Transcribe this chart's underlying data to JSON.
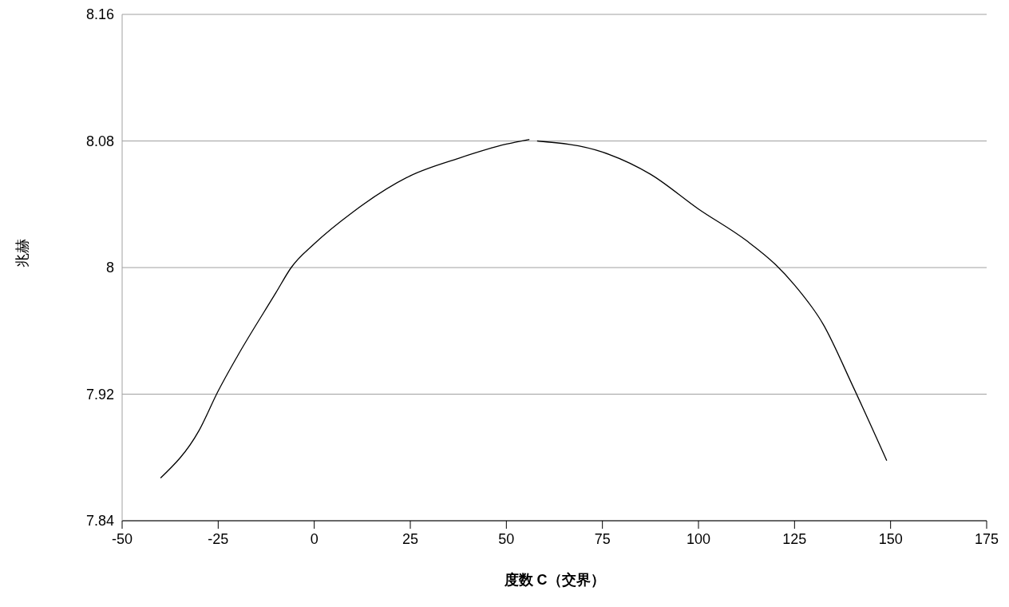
{
  "chart_data": {
    "type": "line",
    "xlabel": "度数 C（交界）",
    "ylabel": "兆赫",
    "x": [
      -40,
      -30,
      -25,
      -20,
      -10,
      -6,
      0,
      10,
      25,
      37.5,
      50,
      56,
      57,
      58,
      75,
      87.5,
      100,
      112.5,
      120,
      125,
      132.5,
      140,
      149
    ],
    "series": [
      {
        "color": "#000000",
        "values": [
          7.867,
          7.897,
          7.922,
          7.944,
          7.984,
          8.0,
          8.015,
          8.035,
          8.058,
          8.069,
          8.078,
          8.081,
          null,
          8.08,
          8.073,
          8.059,
          8.037,
          8.017,
          8.002,
          7.989,
          7.964,
          7.926,
          7.878
        ]
      }
    ],
    "xlim": [
      -50,
      175
    ],
    "xticks": [
      -50,
      -25,
      0,
      25,
      50,
      75,
      100,
      125,
      150,
      175
    ],
    "ylim": [
      7.84,
      8.16
    ],
    "yticks": [
      7.84,
      7.92,
      8,
      8.08,
      8.16
    ],
    "grid": "y",
    "marker": "none",
    "line_style": "solid"
  }
}
